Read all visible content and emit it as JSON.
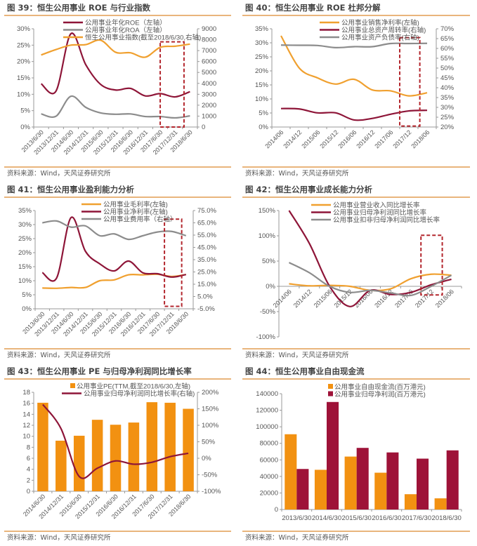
{
  "source_label": "资料来源：Wind，天风证券研究所",
  "colors": {
    "orange": "#F0A02F",
    "bar_orange": "#F29111",
    "dark_red": "#8E1538",
    "gray": "#8C8C8C",
    "highlight": "#B3262D",
    "rule": "#E9B57C"
  },
  "chart_data": [
    {
      "title": "图 39：恒生公用事业 ROE 与行业指数",
      "type": "line",
      "categories": [
        "2013/6/30",
        "2013/12/31",
        "2014/6/30",
        "2014/12/31",
        "2015/6/30",
        "2015/12/31",
        "2016/6/30",
        "2016/12/31",
        "2017/6/30",
        "2017/12/31",
        "2018/6/30"
      ],
      "left_axis": {
        "min": 0,
        "max": 30,
        "ticks": [
          "0%",
          "5%",
          "10%",
          "15%",
          "20%",
          "25%",
          "30%"
        ]
      },
      "right_axis": {
        "min": 0,
        "max": 9000,
        "ticks": [
          "0",
          "1000",
          "2000",
          "3000",
          "4000",
          "5000",
          "6000",
          "7000",
          "8000",
          "9000"
        ]
      },
      "series": [
        {
          "name": "公用事业年化ROE（左轴）",
          "kind": "line",
          "axis": "left",
          "color": "#8E1538",
          "values": [
            13.2,
            11.0,
            28.5,
            19.0,
            13.0,
            11.3,
            11.8,
            9.5,
            10.2,
            9.2,
            10.8
          ]
        },
        {
          "name": "公用事业年化ROA（左轴）",
          "kind": "line",
          "axis": "left",
          "color": "#8C8C8C",
          "values": [
            4.0,
            3.3,
            9.4,
            6.0,
            4.3,
            3.9,
            4.0,
            3.2,
            3.2,
            2.8,
            3.4
          ]
        },
        {
          "name": "恒生公用事业指数(截至2018/6/30,右轴)",
          "kind": "line",
          "axis": "right",
          "color": "#F0A02F",
          "values": [
            6600,
            7100,
            7500,
            7550,
            7950,
            6850,
            6800,
            6400,
            7300,
            7400,
            7600
          ]
        }
      ],
      "highlight": {
        "from_index": 8.5,
        "to_index": 10.1,
        "axis": "left",
        "y_from": 0,
        "y_to": 26
      }
    },
    {
      "title": "图 40：恒生公用事业 ROE 杜邦分解",
      "type": "line",
      "categories": [
        "2014/06",
        "2014/12",
        "2015/06",
        "2015/12",
        "2016/06",
        "2016/12",
        "2017/06",
        "2017/12",
        "2018/06"
      ],
      "left_axis": {
        "min": 0,
        "max": 35,
        "ticks": [
          "0%",
          "5%",
          "10%",
          "15%",
          "20%",
          "25%",
          "30%",
          "35%"
        ]
      },
      "right_axis": {
        "min": 20,
        "max": 70,
        "ticks": [
          "20%",
          "25%",
          "30%",
          "35%",
          "40%",
          "45%",
          "50%",
          "55%",
          "60%",
          "65%",
          "70%"
        ]
      },
      "series": [
        {
          "name": "公用事业销售净利率(左轴)",
          "kind": "line",
          "axis": "left",
          "color": "#F0A02F",
          "values": [
            32.5,
            21.0,
            17.5,
            15.3,
            17.0,
            13.2,
            12.9,
            11.1,
            12.2
          ]
        },
        {
          "name": "公用事业总资产周转率(右轴)",
          "kind": "line",
          "axis": "right",
          "color": "#8E1538",
          "values": [
            29.4,
            29.2,
            27.2,
            27.2,
            23.6,
            24.4,
            26.5,
            28.2,
            28.5
          ]
        },
        {
          "name": "公用事业资产负债率(右轴)",
          "kind": "line",
          "axis": "right",
          "color": "#8C8C8C",
          "values": [
            61.7,
            61.6,
            61.5,
            60.4,
            60.9,
            60.9,
            62.5,
            62.5,
            62.6
          ]
        }
      ],
      "highlight": {
        "from_index": 7.0,
        "to_index": 8.1,
        "axis": "right",
        "y_from": 20.5,
        "y_to": 65.5
      }
    },
    {
      "title": "图 41：恒生公用事业盈利能力分析",
      "type": "line",
      "categories": [
        "2013/6/30",
        "2013/12/31",
        "2014/6/30",
        "2014/12/31",
        "2015/6/30",
        "2015/12/31",
        "2016/6/30",
        "2016/12/31",
        "2017/6/30",
        "2017/12/31",
        "2018/6/30"
      ],
      "left_axis": {
        "min": 0,
        "max": 35,
        "ticks": [
          "0%",
          "5%",
          "10%",
          "15%",
          "20%",
          "25%",
          "30%",
          "35%"
        ]
      },
      "right_axis": {
        "min": -5,
        "max": 75,
        "ticks": [
          "-5.0%",
          "5.0%",
          "15.0%",
          "25.0%",
          "35.0%",
          "45.0%",
          "55.0%",
          "65.0%",
          "75.0%"
        ]
      },
      "series": [
        {
          "name": "公用事业毛利率(左轴)",
          "kind": "line",
          "axis": "left",
          "color": "#F0A02F",
          "values": [
            7.4,
            7.3,
            7.6,
            7.6,
            10.0,
            10.3,
            12.1,
            12.1,
            12.3,
            11.5,
            12.2
          ]
        },
        {
          "name": "公用事业净利率(左轴)",
          "kind": "line",
          "axis": "left",
          "color": "#8E1538",
          "values": [
            12.9,
            11.0,
            32.5,
            20.5,
            16.0,
            13.5,
            17.0,
            12.8,
            12.5,
            11.3,
            12.2
          ]
        },
        {
          "name": "公用事业费用率（右轴）",
          "kind": "line",
          "axis": "right",
          "color": "#8C8C8C",
          "values": [
            65.0,
            66.5,
            61.5,
            62.5,
            54.5,
            56.0,
            51.5,
            54.5,
            57.5,
            58.0,
            54.5
          ]
        }
      ],
      "highlight": {
        "from_index": 9.0,
        "to_index": 10.2,
        "axis": "right",
        "y_from": -3,
        "y_to": 68
      }
    },
    {
      "title": "图 42：恒生公用事业成长能力分析",
      "type": "line",
      "categories": [
        "2014/06",
        "2014/12",
        "2015/06",
        "2015/12",
        "2016/06",
        "2016/12",
        "2017/06",
        "2017/12",
        "2018/06"
      ],
      "left_axis": {
        "min": -100,
        "max": 150,
        "ticks": [
          "-100%",
          "-50%",
          "0%",
          "50%",
          "100%",
          "150%"
        ]
      },
      "series": [
        {
          "name": "公用事业营业收入同比增长率",
          "kind": "line",
          "axis": "left",
          "color": "#F0A02F",
          "values": [
            5,
            1,
            2,
            0,
            -8,
            -5,
            15,
            24,
            22
          ]
        },
        {
          "name": "公用事业归母净利润同比增长率",
          "kind": "line",
          "axis": "left",
          "color": "#8E1538",
          "values": [
            150,
            85,
            0,
            -40,
            -8,
            -16,
            -12,
            3,
            14
          ]
        },
        {
          "name": "公用事业扣非归母净利润同比增长率",
          "kind": "line",
          "axis": "left",
          "color": "#8C8C8C",
          "values": [
            47,
            27,
            0,
            -12,
            -8,
            -13,
            -18,
            0,
            22
          ]
        }
      ],
      "highlight": {
        "from_index": 7.0,
        "to_index": 8.05,
        "axis": "left",
        "y_from": -17,
        "y_to": 101
      }
    },
    {
      "title": "图 43：恒生公用事业 PE 与归母净利润同比增长率",
      "type": "bar",
      "categories": [
        "2014/6/30",
        "2014/12/31",
        "2015/6/30",
        "2015/12/31",
        "2016/6/30",
        "2016/12/31",
        "2017/6/30",
        "2017/12/31",
        "2018/6/30"
      ],
      "left_axis": {
        "min": 0,
        "max": 18,
        "ticks": [
          "0",
          "2",
          "4",
          "6",
          "8",
          "10",
          "12",
          "14",
          "16",
          "18"
        ]
      },
      "right_axis": {
        "min": -100,
        "max": 200,
        "ticks": [
          "-100%",
          "-50%",
          "0%",
          "50%",
          "100%",
          "150%",
          "200%"
        ]
      },
      "series": [
        {
          "name": "公用事业PE(TTM,截至2018/6/30,左轴)",
          "kind": "bar",
          "axis": "left",
          "color": "#F29111",
          "values": [
            16.1,
            9.2,
            10.1,
            13.0,
            12.1,
            12.5,
            16.2,
            16.1,
            15.0
          ]
        },
        {
          "name": "公用事业归母净利润同比增长率(右轴)",
          "kind": "line",
          "axis": "right",
          "color": "#8E1538",
          "values": [
            163,
            90,
            -55,
            -30,
            -8,
            -18,
            -12,
            5,
            15
          ]
        }
      ]
    },
    {
      "title": "图 44：恒生公用事业自由现金流",
      "type": "bar",
      "categories": [
        "2013/6/30",
        "2014/6/30",
        "2015/6/30",
        "2016/6/30",
        "2017/6/30",
        "2018/6/30"
      ],
      "left_axis": {
        "min": 0,
        "max": 140000,
        "ticks": [
          "0",
          "20000",
          "40000",
          "60000",
          "80000",
          "100000",
          "120000",
          "140000"
        ]
      },
      "series": [
        {
          "name": "公用事业自由现金流(百万港元)",
          "kind": "bar",
          "axis": "left",
          "color": "#F29111",
          "values": [
            91000,
            48000,
            64000,
            44500,
            18500,
            13500
          ]
        },
        {
          "name": "公用事业归母净利润(百万港元)",
          "kind": "bar",
          "axis": "left",
          "color": "#9E1238",
          "values": [
            49000,
            130000,
            74500,
            69000,
            61500,
            71500
          ]
        }
      ]
    }
  ]
}
